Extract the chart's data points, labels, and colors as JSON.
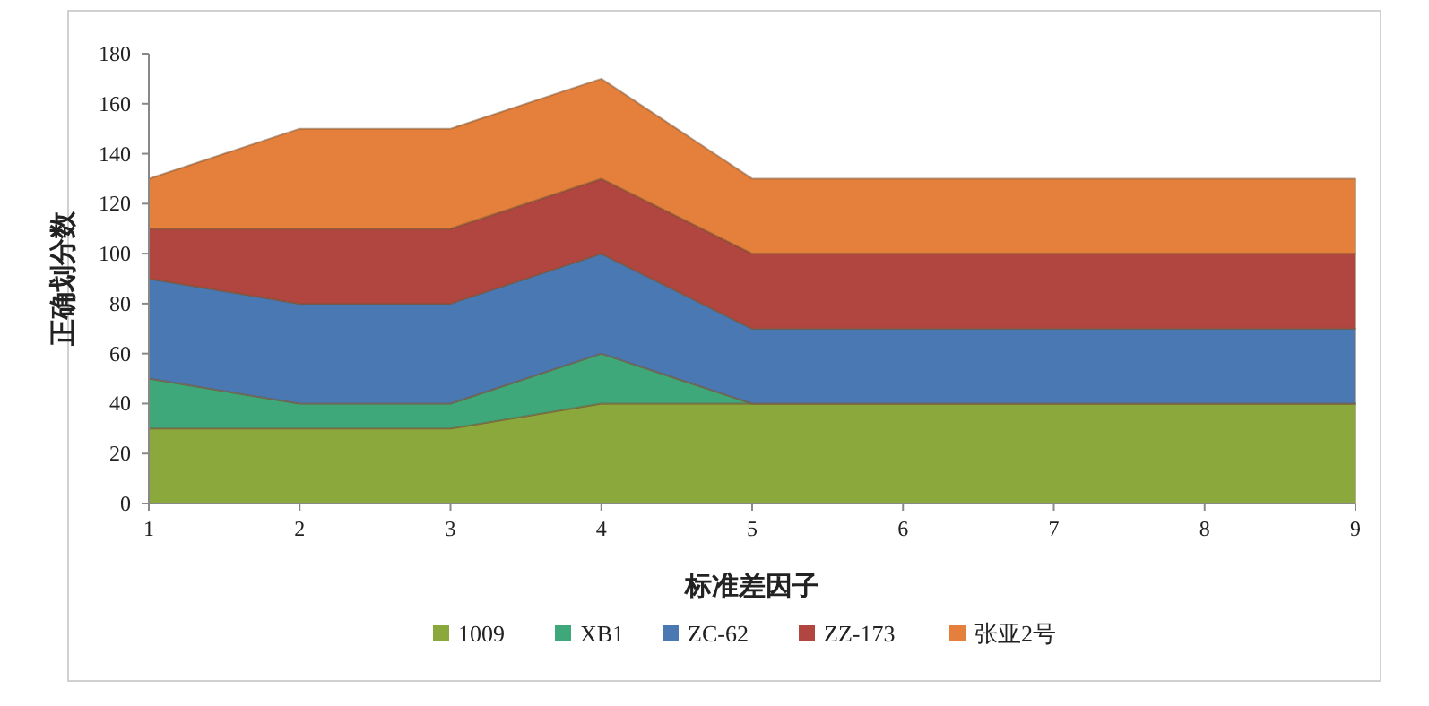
{
  "chart_data": {
    "type": "area",
    "stacked": true,
    "xlabel": "标准差因子",
    "ylabel": "正确划分数",
    "x": [
      1,
      2,
      3,
      4,
      5,
      6,
      7,
      8,
      9
    ],
    "xlim": [
      1,
      9
    ],
    "xticks": [
      1,
      2,
      3,
      4,
      5,
      6,
      7,
      8,
      9
    ],
    "ylim": [
      0,
      180
    ],
    "yticks": [
      0,
      20,
      40,
      60,
      80,
      100,
      120,
      140,
      160,
      180
    ],
    "legend": "bottom",
    "series": [
      {
        "name": "1009",
        "color": "#8ba83c",
        "values": [
          30,
          30,
          30,
          40,
          40,
          40,
          40,
          40,
          40
        ]
      },
      {
        "name": "XB1",
        "color": "#3fa87a",
        "values": [
          20,
          10,
          10,
          20,
          0,
          0,
          0,
          0,
          0
        ]
      },
      {
        "name": "ZC-62",
        "color": "#4a78b2",
        "values": [
          40,
          40,
          40,
          40,
          30,
          30,
          30,
          30,
          30
        ]
      },
      {
        "name": "ZZ-173",
        "color": "#b0463f",
        "values": [
          20,
          30,
          30,
          30,
          30,
          30,
          30,
          30,
          30
        ]
      },
      {
        "name": "张亚2号",
        "color": "#e5803c",
        "values": [
          20,
          40,
          40,
          40,
          30,
          30,
          30,
          30,
          30
        ]
      }
    ]
  }
}
